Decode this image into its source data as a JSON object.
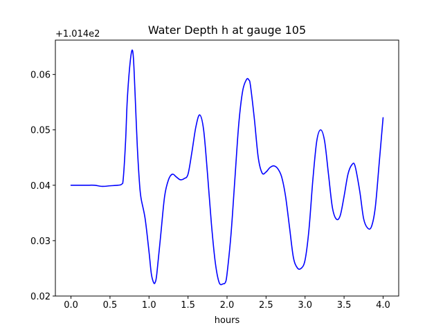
{
  "chart_data": {
    "type": "line",
    "title": "Water Depth h at gauge 105",
    "xlabel": "hours",
    "ylabel": "",
    "y_offset_label": "+1.014e2",
    "xlim": [
      -0.2,
      4.2
    ],
    "ylim": [
      0.02,
      0.0662
    ],
    "xticks": [
      0.0,
      0.5,
      1.0,
      1.5,
      2.0,
      2.5,
      3.0,
      3.5,
      4.0
    ],
    "xtick_labels": [
      "0.0",
      "0.5",
      "1.0",
      "1.5",
      "2.0",
      "2.5",
      "3.0",
      "3.5",
      "4.0"
    ],
    "yticks": [
      0.02,
      0.03,
      0.04,
      0.05,
      0.06
    ],
    "ytick_labels": [
      "0.02",
      "0.03",
      "0.04",
      "0.05",
      "0.06"
    ],
    "grid": false,
    "series": [
      {
        "color": "#0000ff",
        "x": [
          0.0,
          0.1,
          0.2,
          0.3,
          0.4,
          0.5,
          0.6,
          0.65,
          0.67,
          0.7,
          0.72,
          0.75,
          0.78,
          0.8,
          0.82,
          0.85,
          0.88,
          0.9,
          0.95,
          1.0,
          1.03,
          1.06,
          1.08,
          1.1,
          1.15,
          1.2,
          1.25,
          1.3,
          1.35,
          1.4,
          1.45,
          1.5,
          1.55,
          1.6,
          1.65,
          1.7,
          1.75,
          1.8,
          1.85,
          1.9,
          1.95,
          1.98,
          2.0,
          2.05,
          2.1,
          2.15,
          2.2,
          2.25,
          2.28,
          2.3,
          2.35,
          2.4,
          2.45,
          2.5,
          2.55,
          2.6,
          2.65,
          2.7,
          2.75,
          2.8,
          2.85,
          2.9,
          2.95,
          3.0,
          3.05,
          3.1,
          3.15,
          3.2,
          3.25,
          3.3,
          3.35,
          3.4,
          3.45,
          3.5,
          3.55,
          3.6,
          3.64,
          3.7,
          3.75,
          3.8,
          3.85,
          3.9,
          3.95,
          4.0
        ],
        "y": [
          0.04,
          0.04,
          0.04,
          0.04,
          0.0398,
          0.0399,
          0.04,
          0.0402,
          0.0412,
          0.048,
          0.055,
          0.061,
          0.0643,
          0.063,
          0.057,
          0.047,
          0.04,
          0.0375,
          0.034,
          0.028,
          0.024,
          0.0224,
          0.0225,
          0.024,
          0.031,
          0.038,
          0.041,
          0.042,
          0.0415,
          0.041,
          0.0412,
          0.042,
          0.046,
          0.0505,
          0.0527,
          0.05,
          0.042,
          0.033,
          0.026,
          0.0224,
          0.0222,
          0.0225,
          0.024,
          0.031,
          0.041,
          0.051,
          0.057,
          0.0591,
          0.059,
          0.058,
          0.052,
          0.045,
          0.0422,
          0.0424,
          0.0432,
          0.0435,
          0.043,
          0.0415,
          0.038,
          0.0325,
          0.027,
          0.0251,
          0.025,
          0.0265,
          0.032,
          0.041,
          0.048,
          0.05,
          0.048,
          0.042,
          0.036,
          0.0339,
          0.0345,
          0.038,
          0.042,
          0.0437,
          0.0435,
          0.039,
          0.034,
          0.0323,
          0.0325,
          0.036,
          0.044,
          0.0522
        ]
      }
    ]
  }
}
